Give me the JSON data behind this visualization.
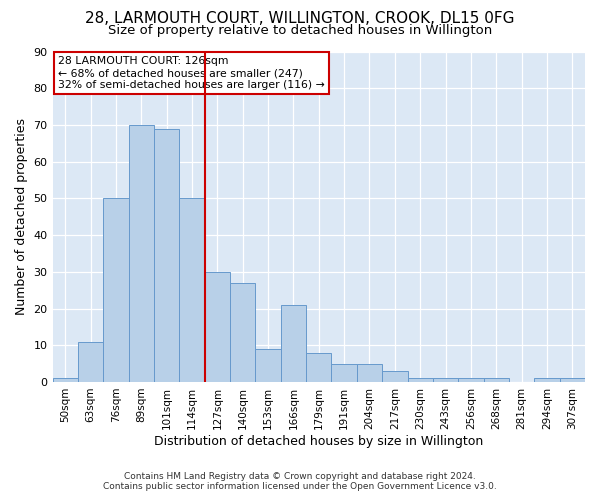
{
  "title1": "28, LARMOUTH COURT, WILLINGTON, CROOK, DL15 0FG",
  "title2": "Size of property relative to detached houses in Willington",
  "xlabel": "Distribution of detached houses by size in Willington",
  "ylabel": "Number of detached properties",
  "categories": [
    "50sqm",
    "63sqm",
    "76sqm",
    "89sqm",
    "101sqm",
    "114sqm",
    "127sqm",
    "140sqm",
    "153sqm",
    "166sqm",
    "179sqm",
    "191sqm",
    "204sqm",
    "217sqm",
    "230sqm",
    "243sqm",
    "256sqm",
    "268sqm",
    "281sqm",
    "294sqm",
    "307sqm"
  ],
  "values": [
    1,
    11,
    50,
    70,
    69,
    50,
    30,
    27,
    9,
    21,
    8,
    5,
    5,
    3,
    1,
    1,
    1,
    1,
    0,
    1,
    1
  ],
  "bar_color": "#b8d0e8",
  "bar_edge_color": "#6699cc",
  "vline_x": 5.5,
  "vline_color": "#cc0000",
  "annotation_text": "28 LARMOUTH COURT: 126sqm\n← 68% of detached houses are smaller (247)\n32% of semi-detached houses are larger (116) →",
  "annotation_box_color": "#ffffff",
  "annotation_box_edge": "#cc0000",
  "ylim": [
    0,
    90
  ],
  "yticks": [
    0,
    10,
    20,
    30,
    40,
    50,
    60,
    70,
    80,
    90
  ],
  "footer1": "Contains HM Land Registry data © Crown copyright and database right 2024.",
  "footer2": "Contains public sector information licensed under the Open Government Licence v3.0.",
  "bg_color": "#ffffff",
  "plot_bg_color": "#dce8f5",
  "title1_fontsize": 11,
  "title2_fontsize": 9.5,
  "xlabel_fontsize": 9,
  "ylabel_fontsize": 9,
  "footer_fontsize": 6.5
}
